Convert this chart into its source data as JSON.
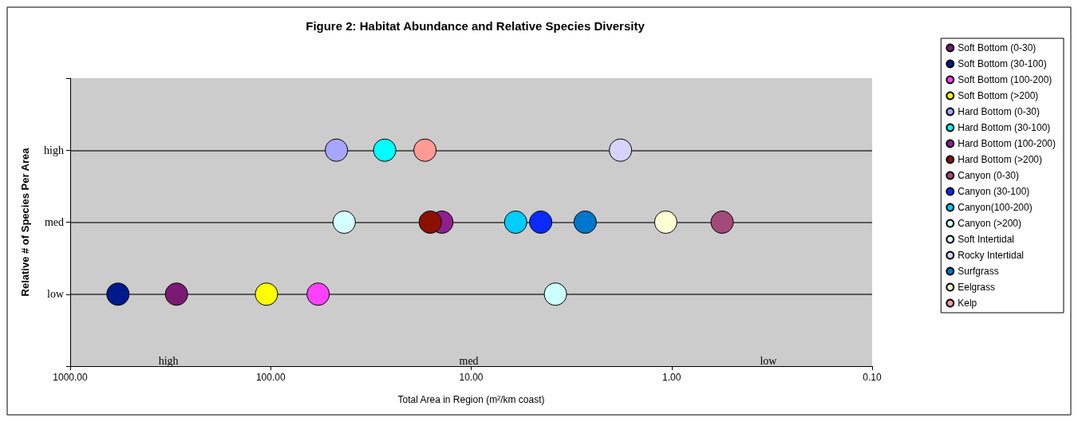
{
  "chart_data": {
    "type": "scatter",
    "title": "Figure 2: Habitat Abundance and Relative Species Diversity",
    "xlabel": "Total Area in Region (m²/km coast)",
    "ylabel": "Relative # of Species Per Area",
    "orientation": "horizontal",
    "categories": [
      null,
      "high",
      "med",
      "low",
      null
    ],
    "log": "x",
    "xlim": [
      1000,
      0.1
    ],
    "xticks": [
      {
        "value": 1000,
        "label": "1000.00"
      },
      {
        "value": 100,
        "label": "100.00"
      },
      {
        "value": 10,
        "label": "10.00"
      },
      {
        "value": 1,
        "label": "1.00"
      },
      {
        "value": 0.1,
        "label": "0.10"
      }
    ],
    "grid": "y",
    "legend": "right",
    "marker": "circle",
    "annotations": [
      "high",
      "med",
      "low"
    ],
    "series": [
      {
        "name": "Soft Bottom (0-30)",
        "color": "#7a1a73",
        "values": [
          null,
          null,
          null,
          295,
          null
        ]
      },
      {
        "name": "Soft Bottom (30-100)",
        "color": "#001a8c",
        "values": [
          null,
          null,
          null,
          578,
          null
        ]
      },
      {
        "name": "Soft Bottom (100-200)",
        "color": "#ff40ff",
        "values": [
          null,
          null,
          null,
          58,
          null
        ]
      },
      {
        "name": "Soft Bottom (>200)",
        "color": "#ffff00",
        "values": [
          null,
          null,
          null,
          105,
          null
        ]
      },
      {
        "name": "Hard Bottom (0-30)",
        "color": "#a6a6ff",
        "values": [
          null,
          47,
          null,
          null,
          null
        ]
      },
      {
        "name": "Hard Bottom (30-100)",
        "color": "#00ffff",
        "values": [
          null,
          27,
          null,
          null,
          null
        ]
      },
      {
        "name": "Hard Bottom (100-200)",
        "color": "#8f1f8f",
        "values": [
          null,
          null,
          14,
          null,
          null
        ]
      },
      {
        "name": "Hard Bottom (>200)",
        "color": "#8b1000",
        "values": [
          null,
          null,
          16,
          null,
          null
        ]
      },
      {
        "name": "Canyon (0-30)",
        "color": "#a34a7a",
        "values": [
          null,
          null,
          0.56,
          null,
          null
        ]
      },
      {
        "name": "Canyon (30-100)",
        "color": "#0a2aff",
        "values": [
          null,
          null,
          4.5,
          null,
          null
        ]
      },
      {
        "name": "Canyon(100-200)",
        "color": "#00ccff",
        "values": [
          null,
          null,
          6.0,
          null,
          null
        ]
      },
      {
        "name": "Canyon (>200)",
        "color": "#ccffff",
        "values": [
          null,
          null,
          null,
          3.8,
          null
        ]
      },
      {
        "name": "Soft Intertidal",
        "color": "#d4ffff",
        "values": [
          null,
          null,
          43,
          null,
          null
        ]
      },
      {
        "name": "Rocky Intertidal",
        "color": "#d4d4ff",
        "values": [
          null,
          1.8,
          null,
          null,
          null
        ]
      },
      {
        "name": "Surfgrass",
        "color": "#0077cc",
        "values": [
          null,
          null,
          2.7,
          null,
          null
        ]
      },
      {
        "name": "Eelgrass",
        "color": "#ffffd4",
        "values": [
          null,
          null,
          1.07,
          null,
          null
        ]
      },
      {
        "name": "Kelp",
        "color": "#ff9a94",
        "values": [
          null,
          17,
          null,
          null,
          null
        ]
      }
    ]
  }
}
